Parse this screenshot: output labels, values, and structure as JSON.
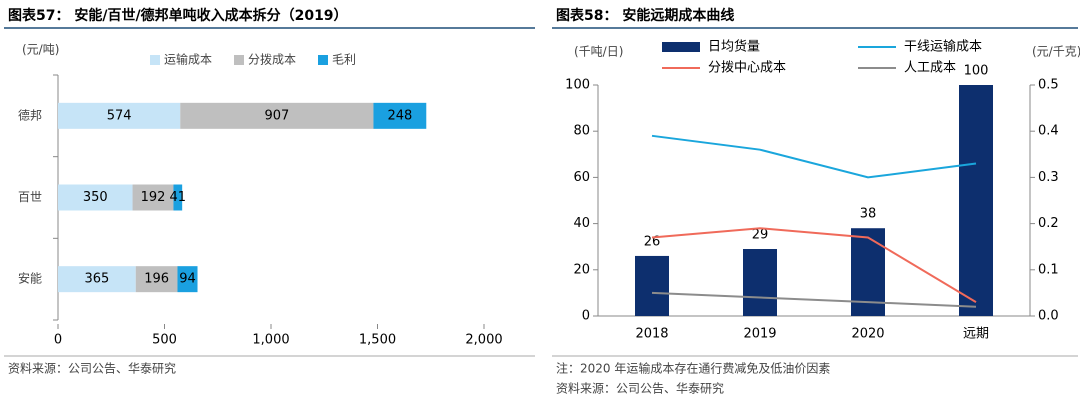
{
  "chart_data": [
    {
      "type": "hbar_stacked",
      "title": "图表57： 安能/百世/德邦单吨收入成本拆分（2019）",
      "unit_label": "(元/吨)",
      "categories": [
        "德邦",
        "百世",
        "安能"
      ],
      "series": [
        {
          "name": "运输成本",
          "color": "#c6e4f7",
          "values": [
            574,
            350,
            365
          ]
        },
        {
          "name": "分拨成本",
          "color": "#bfbfbf",
          "values": [
            907,
            192,
            196
          ]
        },
        {
          "name": "毛利",
          "color": "#1aa0e0",
          "values": [
            248,
            41,
            94
          ]
        }
      ],
      "xlim": [
        0,
        2000
      ],
      "xticks": [
        0,
        500,
        {
          "value": 1000,
          "label": "1,000"
        },
        {
          "value": 1500,
          "label": "1,500"
        },
        {
          "value": 2000,
          "label": "2,000"
        }
      ],
      "source": "资料来源：公司公告、华泰研究"
    },
    {
      "type": "combo",
      "title": "图表58： 安能远期成本曲线",
      "y_label": "(千吨/日)",
      "y2_label": "(元/千克)",
      "categories": [
        "2018",
        "2019",
        "2020",
        "远期"
      ],
      "series": [
        {
          "name": "日均货量",
          "kind": "bar",
          "color": "#0d2f6e",
          "values": [
            26,
            29,
            38,
            100
          ]
        },
        {
          "name": "干线运输成本",
          "kind": "line",
          "axis": "y2",
          "color": "#1aa6dc",
          "values": [
            0.39,
            0.36,
            0.3,
            0.33
          ]
        },
        {
          "name": "分拨中心成本",
          "kind": "line",
          "axis": "y2",
          "color": "#f06a5a",
          "values": [
            0.17,
            0.19,
            0.17,
            0.03
          ]
        },
        {
          "name": "人工成本",
          "kind": "line",
          "axis": "y2",
          "color": "#8c8c8c",
          "values": [
            0.05,
            0.04,
            0.03,
            0.02
          ]
        }
      ],
      "ylim": [
        0,
        100
      ],
      "yticks": [
        0,
        20,
        40,
        60,
        80,
        100
      ],
      "y2lim": [
        0,
        0.5
      ],
      "y2ticks": [
        {
          "value": 0,
          "label": "0.0"
        },
        0.1,
        0.2,
        0.3,
        0.4,
        0.5
      ],
      "note": "注：2020 年运输成本存在通行费减免及低油价因素",
      "source": "资料来源：公司公告、华泰研究"
    }
  ]
}
